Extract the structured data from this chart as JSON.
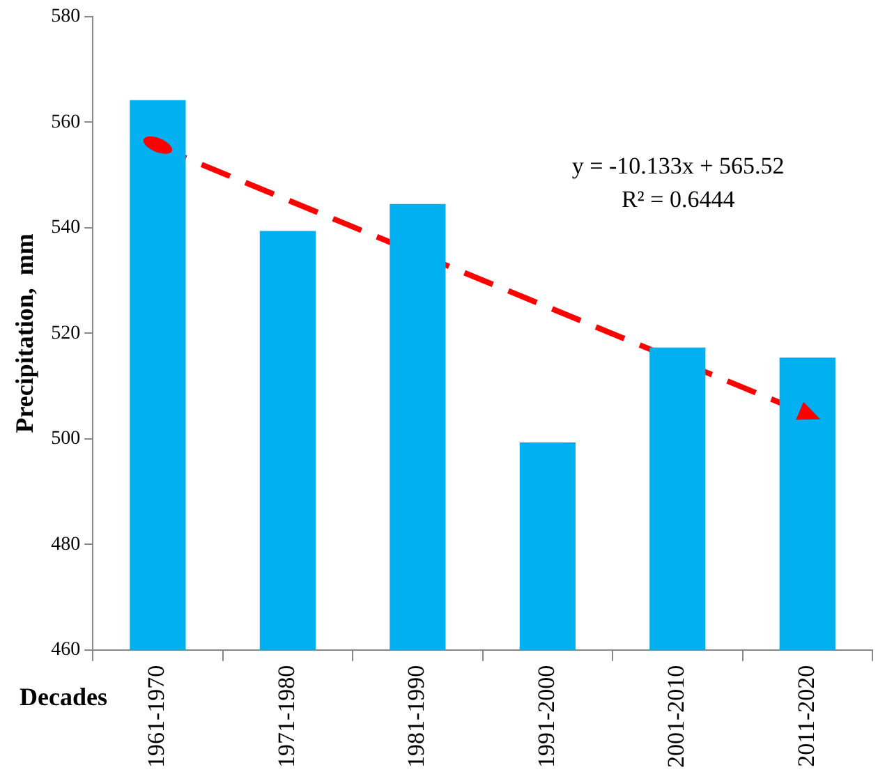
{
  "chart_data": {
    "type": "bar",
    "xlabel": "Decades",
    "ylabel": "Precipitation,  mm",
    "categories": [
      "1961-1970",
      "1971-1980",
      "1981-1990",
      "1991-2000",
      "2001-2010",
      "2011-2020"
    ],
    "series": [
      {
        "color": "#00b0f0",
        "values": [
          564.2,
          539.4,
          544.5,
          499.3,
          517.3,
          515.4
        ]
      },
      {
        "type": "line",
        "color": "#ff0000",
        "line_style": "dashed",
        "marker": "none",
        "values": [
          555.4,
          null,
          null,
          null,
          null,
          504.7
        ]
      }
    ],
    "ylim": [
      460,
      580
    ],
    "yticks": [
      460,
      480,
      500,
      520,
      540,
      560,
      580
    ],
    "grid": false,
    "legend": false,
    "annotations": [
      "y = -10.133x + 565.52",
      "R² = 0.6444"
    ]
  }
}
